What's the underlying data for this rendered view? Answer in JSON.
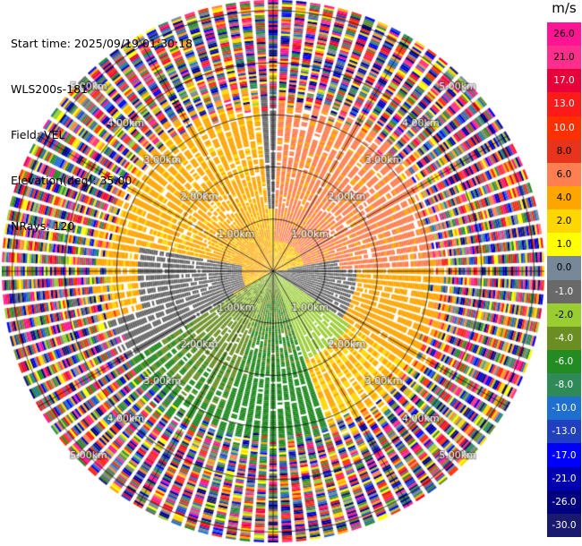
{
  "info": {
    "start_time": "Start time: 2025/09/19 01:30:18",
    "instrument": "WLS200s-181",
    "field": "Field: VEL",
    "elevation": "Elevation(deg): 35.00",
    "nrays": "NRays: 120"
  },
  "chart_data": {
    "type": "heatmap",
    "projection": "polar-ppi",
    "field": "VEL",
    "elevation_deg": 35.0,
    "n_rays": 120,
    "max_range_km": 5.2,
    "range_rings_km": [
      1.0,
      2.0,
      3.0,
      4.0,
      5.0
    ],
    "ring_label": "{r}km",
    "radial_lines_deg": [
      0,
      30,
      60,
      90,
      120,
      150,
      180,
      210,
      240,
      270,
      300,
      330
    ],
    "approximate_velocity_pattern": {
      "northwest_inner_to_3km": "4.0 to 6.0 m/s (yellow)",
      "northeast_inner_to_3km": "6.0 to 8.0 m/s (orange)",
      "east_west_band": "0.0 to -1.0 m/s (gray)",
      "southwest_to_south": "-2.0 to -6.0 m/s (green)",
      "beyond_3_5km": "noise, full range -30.0 to 26.0 m/s"
    }
  },
  "colorbar": {
    "unit": "m/s",
    "labels": [
      "26.0",
      "21.0",
      "17.0",
      "13.0",
      "10.0",
      "8.0",
      "6.0",
      "4.0",
      "2.0",
      "1.0",
      "0.0",
      "-1.0",
      "-2.0",
      "-4.0",
      "-6.0",
      "-8.0",
      "-10.0",
      "-13.0",
      "-17.0",
      "-21.0",
      "-26.0",
      "-30.0"
    ],
    "colors": [
      "#ff1493",
      "#ff2d8c",
      "#e8003a",
      "#ff1a1a",
      "#ff3000",
      "#e8341c",
      "#ff7f50",
      "#ffa500",
      "#ffd700",
      "#ffff00",
      "#778899",
      "#696969",
      "#9acd32",
      "#6b8e23",
      "#228b22",
      "#2e8b57",
      "#1e6fd0",
      "#2040c0",
      "#0000ff",
      "#0000b0",
      "#000080",
      "#191970"
    ]
  }
}
